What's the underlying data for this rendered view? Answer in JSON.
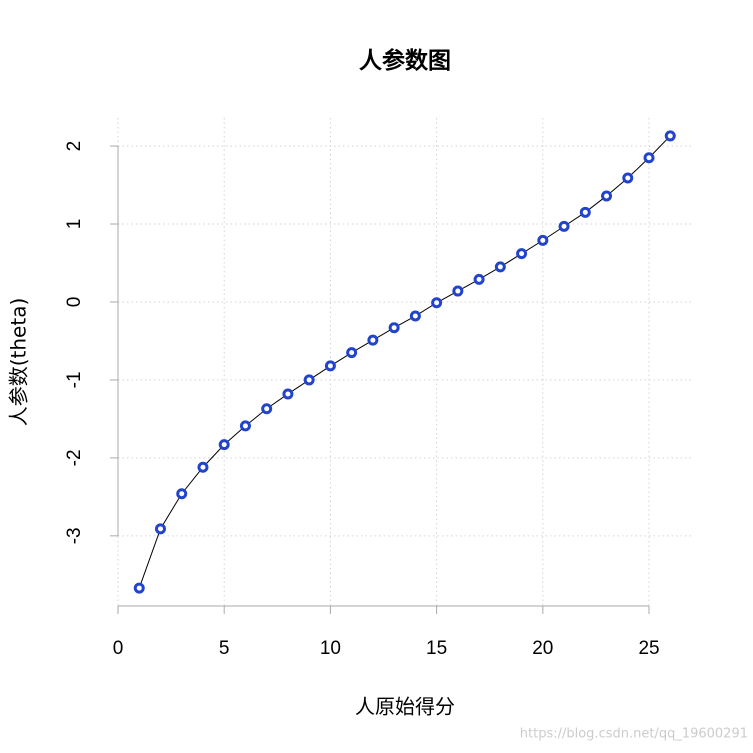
{
  "chart_data": {
    "type": "line",
    "title": "人参数图",
    "x_label": "人原始得分",
    "y_label": "人参数(theta)",
    "x": [
      1,
      2,
      3,
      4,
      5,
      6,
      7,
      8,
      9,
      10,
      11,
      12,
      13,
      14,
      15,
      16,
      17,
      18,
      19,
      20,
      21,
      22,
      23,
      24,
      25,
      26
    ],
    "series": [
      {
        "name": "theta",
        "color": "#2244cc",
        "line_color": "#000000",
        "values": [
          -3.67,
          -2.91,
          -2.46,
          -2.12,
          -1.83,
          -1.59,
          -1.37,
          -1.18,
          -1.0,
          -0.82,
          -0.65,
          -0.49,
          -0.33,
          -0.18,
          -0.01,
          0.14,
          0.29,
          0.45,
          0.62,
          0.79,
          0.97,
          1.15,
          1.36,
          1.59,
          1.85,
          2.13
        ]
      }
    ],
    "xlim": [
      0,
      27
    ],
    "ylim": [
      -3.9,
      2.36
    ],
    "xticks": [
      0,
      5,
      10,
      15,
      20,
      25
    ],
    "yticks": [
      -3,
      -2,
      -1,
      0,
      1,
      2
    ],
    "grid": true,
    "watermark": "https://blog.csdn.net/qq_19600291"
  }
}
